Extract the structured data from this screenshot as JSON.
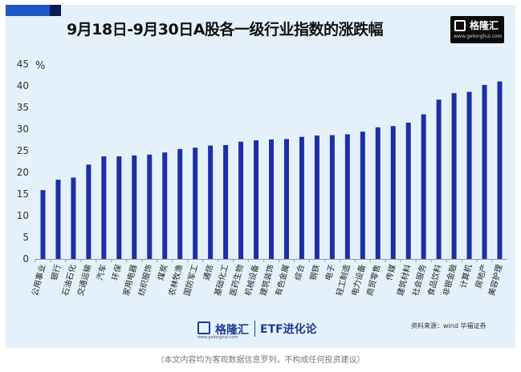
{
  "title": "9月18日-9月30日A股各一级行业指数的涨跌幅",
  "logo": {
    "name": "格隆汇",
    "url": "www.gelonghui.com"
  },
  "footer": {
    "logo_name": "格隆汇",
    "logo_url": "www.gelonghui.com",
    "brand": "ETF进化论",
    "source": "资料来源：wind  华福证券"
  },
  "disclaimer": "（本文内容均为客观数据信息罗列，不构成任何投资建议）",
  "colors": {
    "bar": "#1b2fa8",
    "background": "#e4f1fa",
    "accent": "#1f57c5"
  },
  "chart_data": {
    "type": "bar",
    "title": "9月18日-9月30日A股各一级行业指数的涨跌幅",
    "ylabel": "%",
    "xlabel": "",
    "ylim": [
      0,
      45
    ],
    "yticks": [
      0,
      5,
      10,
      15,
      20,
      25,
      30,
      35,
      40,
      45
    ],
    "grid": false,
    "categories": [
      "公用事业",
      "银行",
      "石油石化",
      "交通运输",
      "汽车",
      "环保",
      "家用电器",
      "纺织服饰",
      "煤炭",
      "农林牧渔",
      "国防军工",
      "通信",
      "基础化工",
      "医药生物",
      "机械设备",
      "建筑装饰",
      "有色金属",
      "综合",
      "钢铁",
      "电子",
      "轻工制造",
      "电力设备",
      "商贸零售",
      "传媒",
      "建筑材料",
      "社会服务",
      "食品饮料",
      "非银金融",
      "计算机",
      "房地产",
      "美容护理"
    ],
    "values": [
      15.9,
      18.3,
      18.8,
      21.8,
      23.7,
      23.7,
      23.9,
      24.1,
      24.6,
      25.4,
      25.7,
      26.2,
      26.3,
      27.1,
      27.4,
      27.6,
      27.7,
      28.2,
      28.5,
      28.6,
      28.8,
      29.4,
      30.4,
      30.7,
      31.5,
      33.4,
      36.8,
      38.3,
      38.6,
      40.2,
      41.0
    ]
  }
}
